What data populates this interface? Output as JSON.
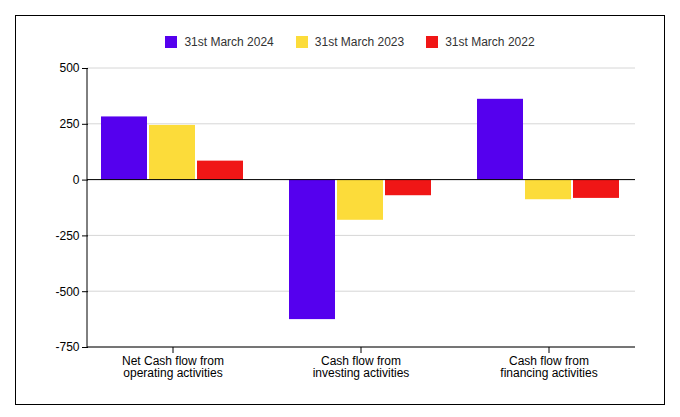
{
  "chart_data": {
    "type": "bar",
    "categories": [
      "Net Cash flow from operating activities",
      "Cash flow from investing activities",
      "Cash flow from financing activities"
    ],
    "series": [
      {
        "name": "31st March 2024",
        "color": "#5500ee",
        "values": [
          283,
          -625,
          362
        ]
      },
      {
        "name": "31st March 2023",
        "color": "#fcdc3a",
        "values": [
          245,
          -180,
          -88
        ]
      },
      {
        "name": "31st March 2022",
        "color": "#f01616",
        "values": [
          85,
          -70,
          -82
        ]
      }
    ],
    "ylim": [
      -750,
      500
    ],
    "yticks": [
      -750,
      -500,
      -250,
      0,
      250,
      500
    ],
    "grid": true,
    "legend": "top"
  }
}
